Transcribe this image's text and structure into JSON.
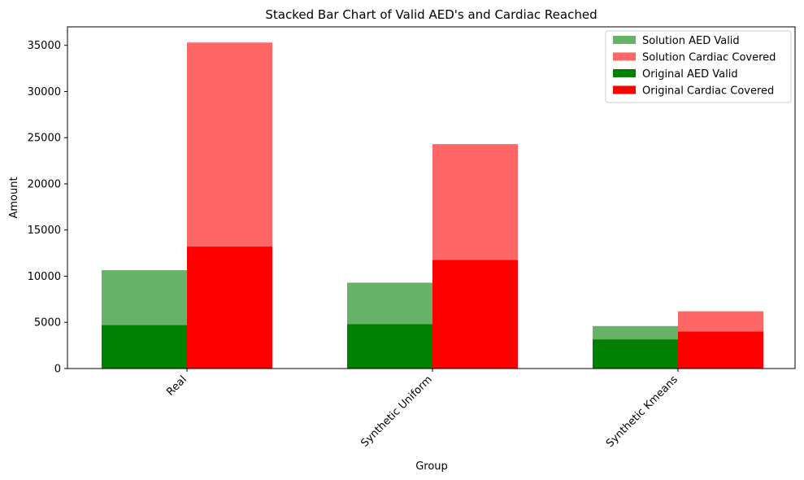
{
  "chart_data": {
    "type": "bar",
    "title": "Stacked Bar Chart of Valid AED's and Cardiac Reached",
    "xlabel": "Group",
    "ylabel": "Amount",
    "categories": [
      "Real",
      "Synthetic Uniform",
      "Synthetic Kmeans"
    ],
    "ylim": [
      0,
      37000
    ],
    "yticks": [
      0,
      5000,
      10000,
      15000,
      20000,
      25000,
      30000,
      35000
    ],
    "grid": false,
    "legend_position": "top-right",
    "series": [
      {
        "name": "Solution AED Valid",
        "values": [
          10650,
          9300,
          4600
        ],
        "color": "#66b266",
        "group": "aed",
        "layer": "back"
      },
      {
        "name": "Solution Cardiac Covered",
        "values": [
          35300,
          24300,
          6200
        ],
        "color": "#ff6666",
        "group": "cardiac",
        "layer": "back"
      },
      {
        "name": "Original AED Valid",
        "values": [
          4700,
          4800,
          3150
        ],
        "color": "#008000",
        "group": "aed",
        "layer": "front"
      },
      {
        "name": "Original Cardiac Covered",
        "values": [
          13200,
          11750,
          4000
        ],
        "color": "#ff0000",
        "group": "cardiac",
        "layer": "front"
      }
    ]
  }
}
